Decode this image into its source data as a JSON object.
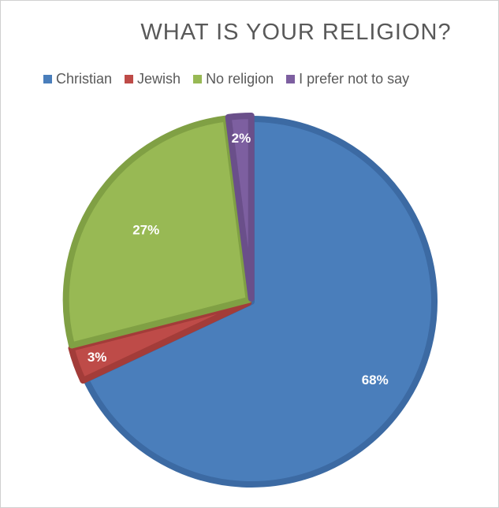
{
  "chart_data": {
    "type": "pie",
    "title": "WHAT IS YOUR RELIGION?",
    "legend_position": "top",
    "categories": [
      "Christian",
      "Jewish",
      "No religion",
      "I prefer not to say"
    ],
    "values": [
      68,
      3,
      27,
      2
    ],
    "data_labels": [
      "68%",
      "3%",
      "27%",
      "2%"
    ],
    "colors": [
      "#4a7ebb",
      "#be4b48",
      "#98b954",
      "#7d5fa0"
    ],
    "edge_colors": [
      "#3c6aa3",
      "#a33c39",
      "#80a044",
      "#6a4f8a"
    ]
  }
}
